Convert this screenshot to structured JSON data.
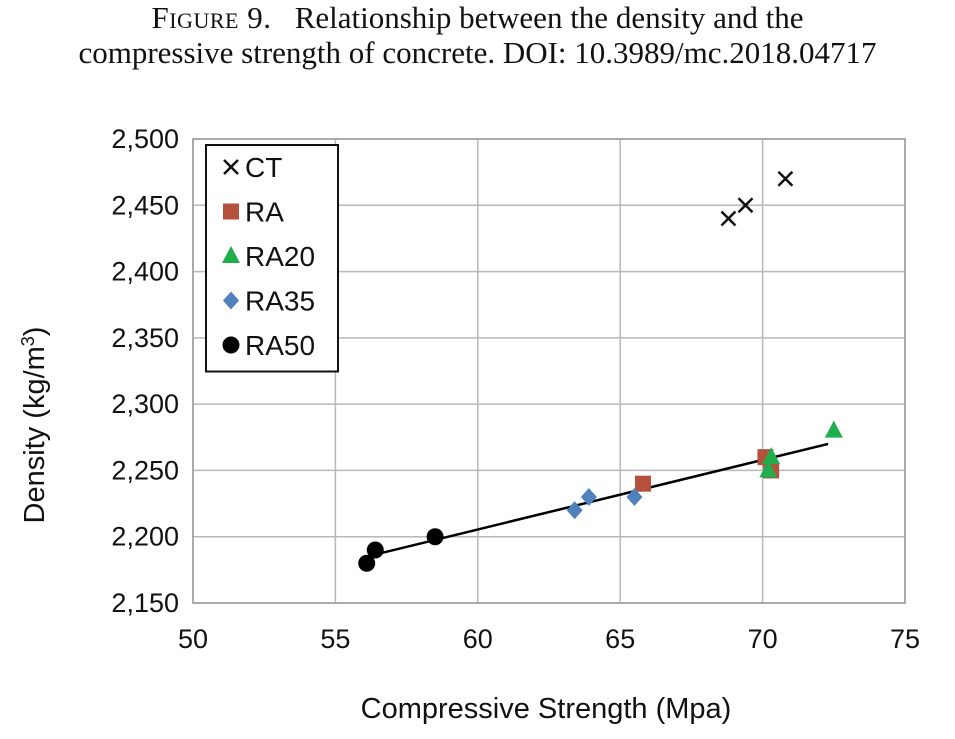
{
  "caption": {
    "label": "Figure 9.",
    "line1": "Relationship between the density and the",
    "line2": "compressive strength of concrete. DOI: 10.3989/mc.2018.04717"
  },
  "chart_data": {
    "type": "scatter",
    "xlabel": "Compressive Strength (Mpa)",
    "ylabel_main": "Density (kg/m",
    "ylabel_sup": "3",
    "ylabel_close": ")",
    "xlim": [
      50,
      75
    ],
    "ylim": [
      2150,
      2500
    ],
    "x_ticks": [
      50,
      55,
      60,
      65,
      70,
      75
    ],
    "y_ticks": [
      2150,
      2200,
      2250,
      2300,
      2350,
      2400,
      2450,
      2500
    ],
    "x_tick_labels": [
      "50",
      "55",
      "60",
      "65",
      "70",
      "75"
    ],
    "y_tick_labels": [
      "2,150",
      "2,200",
      "2,250",
      "2,300",
      "2,350",
      "2,400",
      "2,450",
      "2,500"
    ],
    "grid": true,
    "legend_position": "top-left",
    "series": [
      {
        "name": "CT",
        "marker": "x",
        "color": "#111111",
        "points": [
          [
            68.8,
            2440
          ],
          [
            69.4,
            2450
          ],
          [
            70.8,
            2470
          ]
        ]
      },
      {
        "name": "RA",
        "marker": "square",
        "color": "#b5503c",
        "points": [
          [
            65.8,
            2240
          ],
          [
            70.1,
            2260
          ],
          [
            70.3,
            2250
          ]
        ]
      },
      {
        "name": "RA20",
        "marker": "triangle",
        "color": "#1fae4b",
        "points": [
          [
            70.2,
            2250
          ],
          [
            70.3,
            2260
          ],
          [
            72.5,
            2280
          ]
        ]
      },
      {
        "name": "RA35",
        "marker": "diamond",
        "color": "#4f81bd",
        "points": [
          [
            63.4,
            2220
          ],
          [
            63.9,
            2230
          ],
          [
            65.5,
            2230
          ]
        ]
      },
      {
        "name": "RA50",
        "marker": "circle",
        "color": "#000000",
        "points": [
          [
            56.1,
            2180
          ],
          [
            56.4,
            2190
          ],
          [
            58.5,
            2200
          ]
        ]
      }
    ],
    "trendline": {
      "x": [
        56.1,
        72.3
      ],
      "y": [
        2185,
        2270
      ],
      "color": "#000000"
    }
  }
}
